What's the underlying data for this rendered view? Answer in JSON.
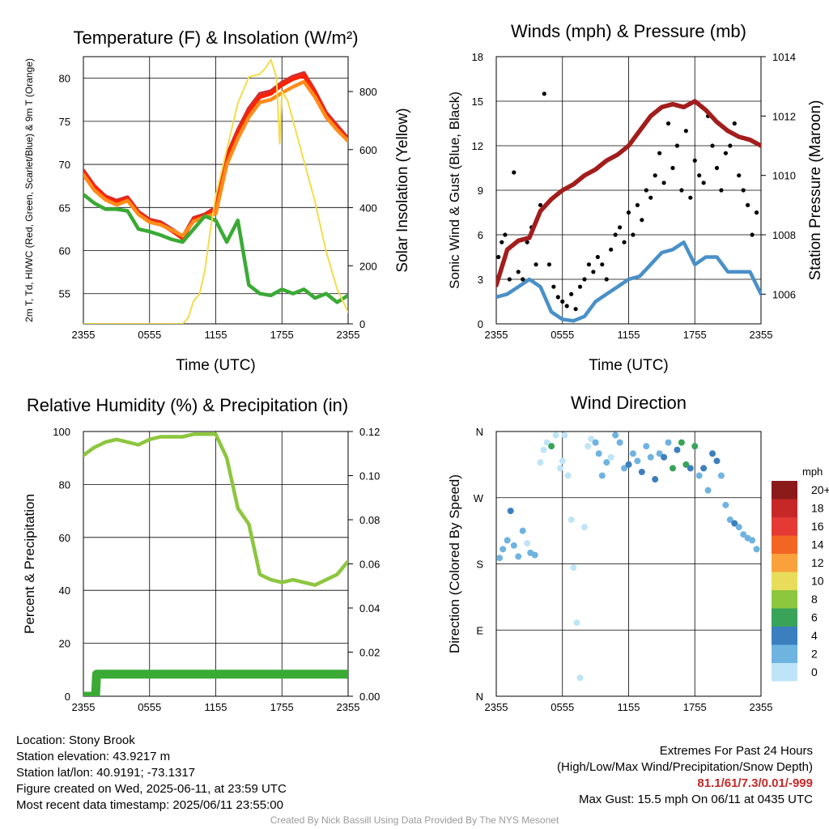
{
  "chart_data": [
    {
      "type": "line",
      "title": "Temperature (F) & Insolation (W/m²)",
      "xlabel": "Time (UTC)",
      "ylabel": "2m T, Td, HI/WC (Red, Green, Scarlet/Blue) & 9m T (Orange)",
      "y2label": "Solar Insolation (Yellow)",
      "x_ticks": [
        "2355",
        "0555",
        "1155",
        "1755",
        "2355"
      ],
      "ylim": [
        51.5,
        82.5
      ],
      "y_ticks": [
        55,
        60,
        65,
        70,
        75,
        80
      ],
      "y2lim": [
        0,
        920
      ],
      "y2_ticks": [
        0,
        200,
        400,
        600,
        800
      ],
      "series": [
        {
          "name": "2m T",
          "color": "#d32f2f",
          "axis": "left",
          "x": [
            0,
            1,
            2,
            3,
            4,
            5,
            6,
            7,
            8,
            9,
            10,
            11,
            12,
            13,
            14,
            15,
            16,
            17,
            18,
            19,
            20,
            21,
            22,
            23,
            24
          ],
          "values": [
            69.3,
            67.5,
            66.3,
            65.8,
            66.2,
            64.5,
            63.6,
            63.3,
            62.5,
            61.6,
            63.8,
            64.2,
            65.0,
            71.0,
            74.0,
            76.5,
            78.2,
            78.5,
            79.5,
            80.2,
            80.6,
            78.5,
            76.0,
            74.5,
            73.0
          ]
        },
        {
          "name": "HI/WC",
          "color": "#ff2200",
          "axis": "left",
          "x": [
            0,
            1,
            2,
            3,
            4,
            5,
            6,
            7,
            8,
            9,
            10,
            11,
            12,
            13,
            14,
            15,
            16,
            17,
            18,
            19,
            20,
            21,
            22,
            23,
            24
          ],
          "values": [
            69.1,
            67.4,
            66.2,
            65.6,
            66.0,
            64.3,
            63.4,
            63.1,
            62.3,
            61.4,
            63.6,
            64.0,
            64.8,
            70.6,
            73.6,
            76.1,
            77.8,
            78.2,
            79.2,
            79.9,
            80.3,
            78.2,
            75.7,
            74.2,
            72.8
          ]
        },
        {
          "name": "9m T",
          "color": "#ff8c1a",
          "axis": "left",
          "x": [
            0,
            1,
            2,
            3,
            4,
            5,
            6,
            7,
            8,
            9,
            10,
            11,
            12,
            13,
            14,
            15,
            16,
            17,
            18,
            19,
            20,
            21,
            22,
            23,
            24
          ],
          "values": [
            68.8,
            67.0,
            65.9,
            65.3,
            65.8,
            64.2,
            63.3,
            63.0,
            62.4,
            61.7,
            63.4,
            63.9,
            64.3,
            70.0,
            73.0,
            75.5,
            77.2,
            77.5,
            78.3,
            79.0,
            79.6,
            77.8,
            75.5,
            74.0,
            72.7
          ]
        },
        {
          "name": "Td",
          "color": "#3aaa35",
          "axis": "left",
          "x": [
            0,
            1,
            2,
            3,
            4,
            5,
            6,
            7,
            8,
            9,
            10,
            11,
            12,
            13,
            14,
            15,
            16,
            17,
            18,
            19,
            20,
            21,
            22,
            23,
            24
          ],
          "values": [
            66.5,
            65.5,
            64.8,
            64.8,
            64.6,
            62.5,
            62.2,
            61.8,
            61.3,
            61.0,
            62.5,
            64.0,
            63.5,
            61.0,
            63.5,
            56.0,
            55.0,
            54.8,
            55.5,
            55.0,
            55.5,
            54.5,
            55.0,
            54.0,
            54.8
          ]
        },
        {
          "name": "Solar Insolation",
          "color": "#f3dc4a",
          "axis": "right",
          "x": [
            0,
            3,
            6,
            9,
            9.5,
            10,
            10.5,
            11,
            11.5,
            12,
            13,
            14,
            15,
            16,
            16.5,
            17,
            17.5,
            17.8,
            18,
            18.5,
            19,
            20,
            21,
            22,
            23,
            24
          ],
          "values": [
            0,
            0,
            0,
            0,
            20,
            80,
            100,
            180,
            320,
            440,
            600,
            760,
            850,
            860,
            880,
            910,
            850,
            620,
            800,
            770,
            700,
            560,
            420,
            250,
            120,
            40
          ]
        }
      ]
    },
    {
      "type": "line",
      "title": "Winds (mph) & Pressure (mb)",
      "xlabel": "Time (UTC)",
      "ylabel": "Sonic Wind & Gust (Blue, Black)",
      "y2label": "Station Pressure (Maroon)",
      "x_ticks": [
        "2355",
        "0555",
        "1155",
        "1755",
        "2355"
      ],
      "ylim": [
        0,
        18
      ],
      "y_ticks": [
        0,
        3,
        6,
        9,
        12,
        15,
        18
      ],
      "y2lim": [
        1005.0,
        1014.0
      ],
      "y2_ticks": [
        1006,
        1008,
        1010,
        1012,
        1014
      ],
      "series": [
        {
          "name": "Sonic Wind",
          "color": "#4a90c8",
          "axis": "left",
          "x": [
            0,
            1,
            2,
            3,
            4,
            5,
            6,
            7,
            8,
            9,
            10,
            11,
            12,
            13,
            14,
            15,
            16,
            17,
            18,
            19,
            20,
            21,
            22,
            23,
            24
          ],
          "values": [
            1.8,
            2.0,
            2.5,
            3.0,
            2.5,
            0.8,
            0.3,
            0.2,
            0.5,
            1.5,
            2.0,
            2.5,
            3.0,
            3.2,
            4.0,
            4.8,
            5.0,
            5.5,
            4.0,
            4.5,
            4.5,
            3.5,
            3.5,
            3.5,
            2.0
          ]
        },
        {
          "name": "Gust",
          "color": "#000000",
          "axis": "left",
          "marker": "dot",
          "x": [
            0.2,
            0.5,
            0.8,
            1.2,
            1.6,
            2.0,
            2.4,
            2.8,
            3.2,
            3.6,
            4.0,
            4.35,
            4.8,
            5.2,
            5.6,
            6.0,
            6.4,
            6.8,
            7.2,
            7.6,
            8.0,
            8.4,
            8.8,
            9.2,
            9.6,
            10.0,
            10.4,
            10.8,
            11.2,
            11.6,
            12.0,
            12.4,
            12.8,
            13.2,
            13.6,
            14.0,
            14.4,
            14.8,
            15.2,
            15.6,
            16.0,
            16.4,
            16.8,
            17.2,
            17.6,
            18.0,
            18.4,
            18.8,
            19.2,
            19.6,
            20.0,
            20.4,
            20.8,
            21.2,
            21.6,
            22.0,
            22.4,
            22.8,
            23.2,
            23.6
          ],
          "values": [
            4.5,
            5.5,
            6.0,
            3.0,
            10.2,
            3.5,
            3.0,
            5.5,
            6.5,
            4.0,
            8.0,
            15.5,
            4.0,
            2.5,
            1.8,
            1.5,
            1.2,
            2.0,
            1.0,
            2.5,
            3.0,
            4.0,
            3.5,
            4.5,
            4.0,
            3.0,
            5.0,
            6.0,
            6.5,
            5.5,
            7.5,
            6.0,
            8.0,
            7.0,
            9.0,
            8.5,
            10.0,
            11.5,
            9.5,
            13.5,
            10.5,
            12.0,
            9.0,
            13.0,
            8.5,
            11.0,
            10.0,
            9.5,
            14.0,
            12.0,
            10.5,
            9.0,
            11.5,
            12.0,
            13.5,
            10.0,
            9.0,
            8.0,
            6.0,
            7.5
          ]
        },
        {
          "name": "Station Pressure",
          "color": "#a31d1d",
          "axis": "right",
          "x": [
            0,
            1,
            2,
            3,
            4,
            5,
            6,
            7,
            8,
            9,
            10,
            11,
            12,
            13,
            14,
            15,
            16,
            17,
            18,
            19,
            20,
            21,
            22,
            23,
            24
          ],
          "values": [
            1006.3,
            1007.5,
            1007.8,
            1007.9,
            1008.8,
            1009.2,
            1009.5,
            1009.7,
            1010.0,
            1010.2,
            1010.5,
            1010.7,
            1011.0,
            1011.5,
            1012.0,
            1012.3,
            1012.4,
            1012.3,
            1012.5,
            1012.2,
            1011.8,
            1011.5,
            1011.3,
            1011.2,
            1011.0
          ]
        }
      ]
    },
    {
      "type": "line",
      "title": "Relative Humidity (%) & Precipitation (in)",
      "xlabel": "",
      "ylabel": "Percent & Precipitation",
      "x_ticks": [
        "2355",
        "0555",
        "1155",
        "1755",
        "2355"
      ],
      "ylim": [
        0,
        100
      ],
      "y_ticks": [
        0,
        20,
        40,
        60,
        80,
        100
      ],
      "y2lim": [
        0,
        0.12
      ],
      "y2_ticks": [
        "0.00",
        "0.02",
        "0.04",
        "0.06",
        "0.08",
        "0.10",
        "0.12"
      ],
      "series": [
        {
          "name": "Relative Humidity",
          "color": "#8dc63f",
          "axis": "left",
          "x": [
            0,
            1,
            2,
            3,
            4,
            5,
            6,
            7,
            8,
            9,
            10,
            11,
            12,
            13,
            14,
            15,
            16,
            17,
            18,
            19,
            20,
            21,
            22,
            23,
            24
          ],
          "values": [
            91,
            94,
            96,
            97,
            96,
            95,
            97,
            98,
            98,
            98,
            99,
            99,
            99,
            90,
            71,
            65,
            46,
            44,
            43,
            44,
            43,
            42,
            44,
            46,
            51
          ]
        },
        {
          "name": "Precipitation",
          "color": "#3aaa35",
          "axis": "right",
          "x": [
            0,
            0.8,
            1.1,
            1.2,
            3,
            6,
            9,
            12,
            15,
            18,
            21,
            24
          ],
          "values": [
            0,
            0,
            0,
            0.01,
            0.01,
            0.01,
            0.01,
            0.01,
            0.01,
            0.01,
            0.01,
            0.01
          ]
        }
      ]
    },
    {
      "type": "scatter",
      "title": "Wind Direction",
      "ylabel": "Direction (Colored By Speed)",
      "x_ticks": [
        "2355",
        "0555",
        "1155",
        "1755",
        "2355"
      ],
      "y_ticks": [
        "N",
        "E",
        "S",
        "W",
        "N"
      ],
      "ylim": [
        0,
        360
      ],
      "legend": {
        "title": "mph",
        "placement": "right",
        "labels": [
          "20+",
          "18",
          "16",
          "14",
          "12",
          "10",
          "8",
          "6",
          "4",
          "2",
          "0"
        ],
        "colors": [
          "#8b1a1a",
          "#c62828",
          "#e53935",
          "#f26522",
          "#f9a13a",
          "#e8dd5a",
          "#8dc63f",
          "#3aa35a",
          "#3b7fbf",
          "#6fb3e0",
          "#bfe4f7"
        ]
      },
      "points": {
        "x": [
          0.3,
          0.6,
          1.0,
          1.3,
          1.6,
          2.0,
          2.4,
          2.8,
          3.1,
          3.5,
          4.0,
          4.3,
          4.6,
          5.0,
          5.4,
          5.8,
          6.0,
          6.2,
          6.5,
          6.8,
          7.0,
          7.3,
          7.6,
          8.0,
          8.3,
          8.6,
          9.0,
          9.3,
          9.6,
          10.0,
          10.4,
          10.8,
          11.2,
          11.6,
          12.0,
          12.4,
          12.8,
          13.2,
          13.6,
          14.0,
          14.4,
          14.8,
          15.2,
          15.6,
          16.0,
          16.4,
          16.8,
          17.2,
          17.6,
          18.0,
          18.4,
          18.8,
          19.2,
          19.6,
          20.0,
          20.4,
          20.8,
          21.2,
          21.6,
          22.0,
          22.4,
          22.8,
          23.2,
          23.6
        ],
        "y": [
          188,
          200,
          212,
          252,
          205,
          190,
          225,
          208,
          195,
          192,
          318,
          335,
          345,
          340,
          355,
          310,
          320,
          355,
          300,
          240,
          175,
          100,
          25,
          230,
          340,
          350,
          345,
          330,
          300,
          318,
          325,
          355,
          345,
          310,
          315,
          330,
          320,
          305,
          340,
          325,
          295,
          330,
          325,
          345,
          310,
          335,
          345,
          315,
          310,
          340,
          300,
          310,
          280,
          330,
          320,
          300,
          260,
          240,
          235,
          230,
          220,
          215,
          212,
          200
        ],
        "speed": [
          2,
          2,
          3,
          4,
          2,
          2,
          2,
          1,
          2,
          3,
          1,
          1,
          0,
          6,
          1,
          1,
          1,
          1,
          1,
          1,
          0,
          1,
          1,
          0,
          0,
          1,
          3,
          2,
          3,
          2,
          1,
          2,
          2,
          3,
          4,
          3,
          2,
          4,
          3,
          2,
          4,
          3,
          4,
          3,
          7,
          4,
          6,
          7,
          4,
          6,
          3,
          4,
          3,
          4,
          4,
          2,
          3,
          3,
          4,
          3,
          3,
          2,
          2,
          2
        ]
      }
    }
  ],
  "footer": {
    "location": "Location: Stony Brook",
    "elevation": "Station elevation: 43.9217 m",
    "latlon": "Station lat/lon: 40.9191; -73.1317",
    "created": "Figure created on Wed, 2025-06-11, at 23:59 UTC",
    "recent": "Most recent data timestamp: 2025/06/11 23:55:00",
    "extremes_title": "Extremes For Past 24 Hours",
    "extremes_desc": "(High/Low/Max Wind/Precipitation/Snow Depth)",
    "extremes_values": "81.1/61/7.3/0.01/-999",
    "max_gust": "Max Gust: 15.5 mph On 06/11 at 0435 UTC",
    "credit": "Created By Nick Bassill Using Data Provided By The NYS Mesonet"
  },
  "colors": {
    "grid": "#000000",
    "extremes": "#c62828"
  }
}
